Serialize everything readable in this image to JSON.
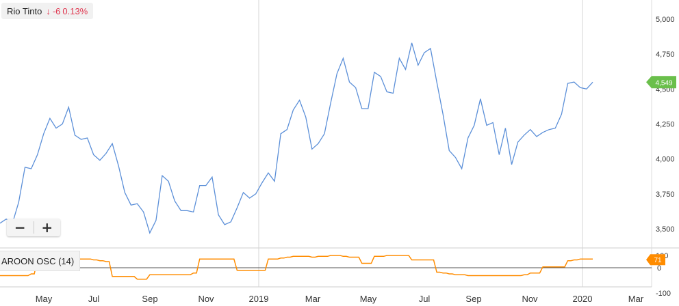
{
  "header": {
    "name": "Rio Tinto",
    "change": "-6",
    "change_pct": "0.13%",
    "arrow_icon": "arrow-down-icon"
  },
  "zoom": {
    "minus_label": "−",
    "plus_label": "+"
  },
  "indicator": {
    "label": "AROON OSC (14)"
  },
  "colors": {
    "price_line": "#5b8fd8",
    "osc_line": "#ff8c00",
    "price_tag": "#6abf4b",
    "osc_tag": "#ff8c00",
    "change_negative": "#e0364f"
  },
  "chart_data": [
    {
      "type": "line",
      "name": "price",
      "y_ticks": [
        "5,000",
        "4,750",
        "4,500",
        "4,250",
        "4,000",
        "3,750",
        "3,500"
      ],
      "ylim": [
        3400,
        5100
      ],
      "x_ticks": [
        "May",
        "Jul",
        "Sep",
        "Nov",
        "2019",
        "Mar",
        "May",
        "Jul",
        "Sep",
        "Nov",
        "2020",
        "Mar"
      ],
      "last_value_label": "4,549",
      "grid": "vertical at year marks",
      "values": [
        3540,
        3570,
        3540,
        3690,
        3940,
        3930,
        4030,
        4180,
        4290,
        4220,
        4250,
        4370,
        4170,
        4140,
        4150,
        4030,
        3990,
        4040,
        4110,
        3950,
        3760,
        3670,
        3680,
        3620,
        3470,
        3560,
        3880,
        3840,
        3700,
        3630,
        3630,
        3620,
        3810,
        3810,
        3870,
        3600,
        3530,
        3550,
        3650,
        3760,
        3720,
        3750,
        3830,
        3900,
        3840,
        4180,
        4210,
        4350,
        4420,
        4300,
        4070,
        4110,
        4180,
        4400,
        4610,
        4720,
        4550,
        4510,
        4360,
        4360,
        4620,
        4590,
        4480,
        4470,
        4720,
        4640,
        4830,
        4670,
        4760,
        4790,
        4550,
        4320,
        4060,
        4010,
        3930,
        4150,
        4240,
        4430,
        4240,
        4260,
        4030,
        4220,
        3960,
        4120,
        4170,
        4210,
        4160,
        4190,
        4210,
        4220,
        4320,
        4540,
        4550,
        4510,
        4500,
        4549
      ]
    },
    {
      "type": "line",
      "name": "AROON OSC (14)",
      "y_ticks": [
        "100",
        "0",
        "-100"
      ],
      "ylim": [
        -100,
        100
      ],
      "last_value_label": "71",
      "values": [
        -64,
        -64,
        -64,
        -64,
        -64,
        -50,
        71,
        71,
        71,
        71,
        71,
        71,
        71,
        71,
        71,
        64,
        57,
        50,
        -71,
        -71,
        -71,
        -71,
        -93,
        -93,
        -57,
        -57,
        -57,
        -57,
        -57,
        -57,
        -57,
        -43,
        71,
        71,
        71,
        71,
        71,
        71,
        -21,
        -21,
        -21,
        -21,
        -21,
        71,
        71,
        79,
        86,
        93,
        93,
        93,
        86,
        93,
        93,
        100,
        100,
        93,
        86,
        86,
        36,
        36,
        93,
        93,
        100,
        100,
        100,
        100,
        64,
        64,
        64,
        64,
        -36,
        -43,
        -50,
        -57,
        -57,
        -64,
        -64,
        -64,
        -64,
        -64,
        -64,
        -64,
        -64,
        -64,
        -57,
        -43,
        -43,
        7,
        7,
        7,
        7,
        57,
        64,
        71,
        71,
        71
      ]
    }
  ]
}
